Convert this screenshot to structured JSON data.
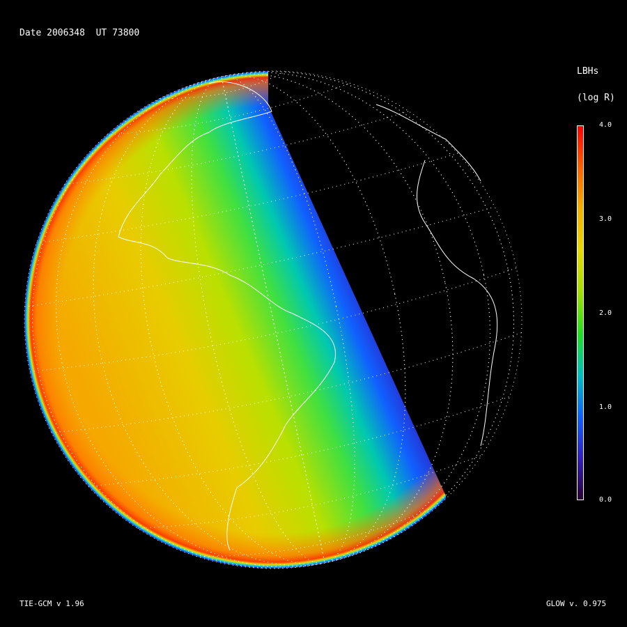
{
  "header": {
    "date_label": "Date",
    "date_value": "2006348",
    "ut_label": "UT",
    "ut_value": "73800"
  },
  "colorbar": {
    "title": "LBHs",
    "units": "(log R)",
    "ticks": [
      "4.0",
      "3.0",
      "2.0",
      "1.0",
      "0.0"
    ],
    "range": [
      0.0,
      4.0
    ],
    "colormap": [
      "#2a0030",
      "#3020c0",
      "#1060ff",
      "#00c0c0",
      "#20e020",
      "#a0e000",
      "#e8d800",
      "#f5b000",
      "#ff6000",
      "#ff0000"
    ]
  },
  "footer": {
    "left": "TIE-GCM v 1.96",
    "right": "GLOW v. 0.975"
  },
  "map": {
    "projection": "orthographic",
    "grid": "dotted",
    "coastlines": "white"
  }
}
